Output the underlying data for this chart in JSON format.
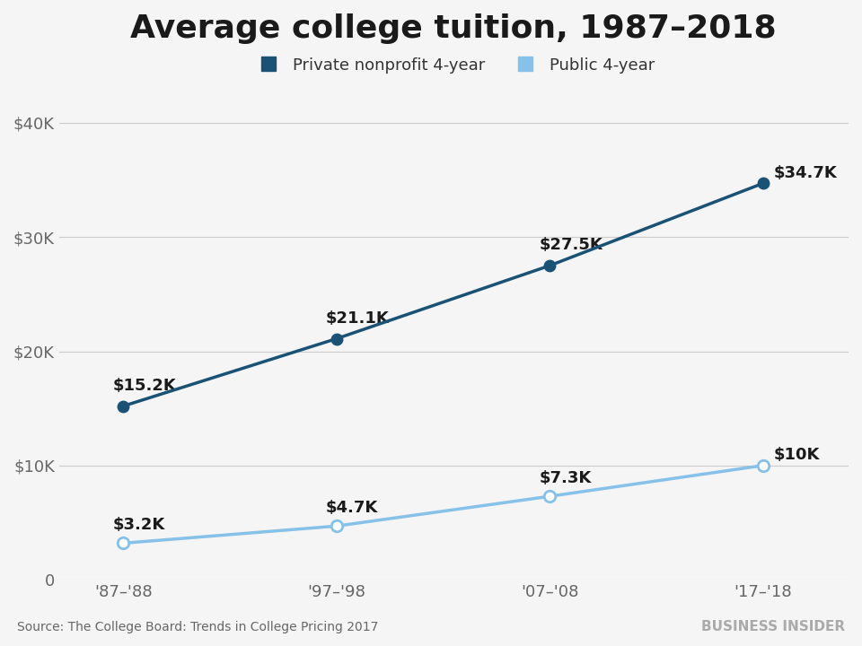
{
  "title": "Average college tuition, 1987–2018",
  "x_labels": [
    "'87–'88",
    "'97–'98",
    "'07–'08",
    "'17–'18"
  ],
  "x_positions": [
    0,
    1,
    2,
    3
  ],
  "private_values": [
    15200,
    21100,
    27500,
    34700
  ],
  "public_values": [
    3200,
    4700,
    7300,
    10000
  ],
  "private_labels": [
    "$15.2K",
    "$21.1K",
    "$27.5K",
    "$34.7K"
  ],
  "public_labels": [
    "$3.2K",
    "$4.7K",
    "$7.3K",
    "$10K"
  ],
  "private_color": "#1a5276",
  "public_color": "#85c1e9",
  "private_legend": "Private nonprofit 4-year",
  "public_legend": "Public 4-year",
  "ylim": [
    0,
    42000
  ],
  "yticks": [
    0,
    10000,
    20000,
    30000,
    40000
  ],
  "ytick_labels": [
    "0",
    "$10K",
    "$20K",
    "$30K",
    "$40K"
  ],
  "background_color": "#f5f5f5",
  "plot_bg_color": "#f5f5f5",
  "source_text": "Source: The College Board: Trends in College Pricing 2017",
  "watermark_text": "BUSINESS INSIDER",
  "title_fontsize": 26,
  "axis_label_fontsize": 13,
  "annotation_fontsize": 13,
  "legend_fontsize": 13,
  "line_width": 2.5,
  "marker_size": 9
}
